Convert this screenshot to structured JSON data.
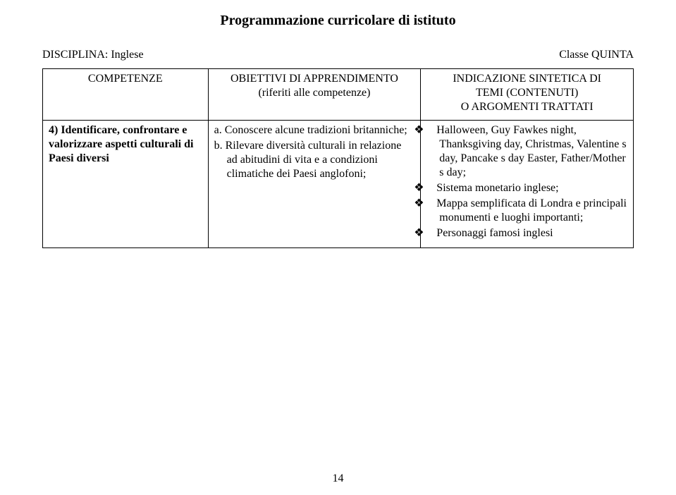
{
  "title": "Programmazione curricolare di istituto",
  "meta": {
    "left": "DISCIPLINA: Inglese",
    "right": "Classe QUINTA"
  },
  "table": {
    "headers": {
      "col1": "COMPETENZE",
      "col2_line1": "OBIETTIVI DI APPRENDIMENTO",
      "col2_line2": "(riferiti alle competenze)",
      "col3_line1": "INDICAZIONE SINTETICA DI",
      "col3_line2": "TEMI (CONTENUTI)",
      "col3_line3": "O ARGOMENTI TRATTATI"
    },
    "row": {
      "col1": "4) Identificare, confrontare e valorizzare aspetti culturali di Paesi diversi",
      "col2_items": [
        "a.  Conoscere alcune tradizioni britanniche;",
        "b.  Rilevare diversità culturali in relazione ad abitudini di vita e a condizioni climatiche dei Paesi anglofoni;"
      ],
      "col3_items": [
        "Halloween, Guy Fawkes night, Thanksgiving day, Christmas, Valentine s day, Pancake s day Easter, Father/Mother s day;",
        "Sistema monetario inglese;",
        "Mappa semplificata di Londra e principali monumenti e luoghi importanti;",
        "Personaggi famosi inglesi"
      ]
    }
  },
  "page_number": "14",
  "bullet_glyph": "❖"
}
